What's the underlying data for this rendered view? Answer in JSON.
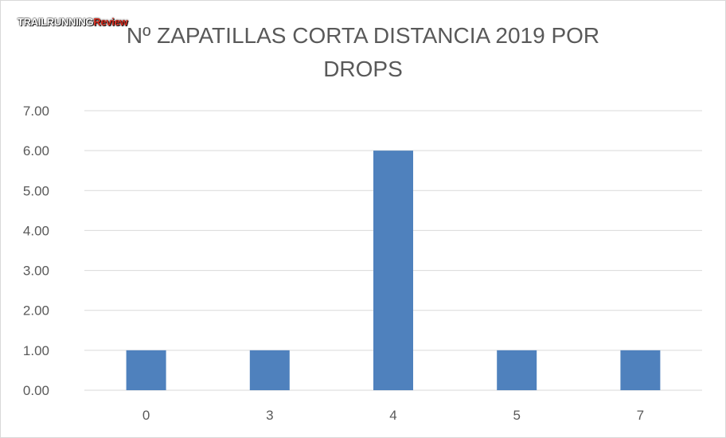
{
  "logo": {
    "part1": "TRAILRUNNING",
    "part2": "Review"
  },
  "chart_data": {
    "type": "bar",
    "title": "Nº ZAPATILLAS CORTA DISTANCIA 2019 POR DROPS",
    "categories": [
      "0",
      "3",
      "4",
      "5",
      "7"
    ],
    "values": [
      1,
      1,
      6,
      1,
      1
    ],
    "ylim": [
      0,
      7
    ],
    "yticks": [
      "0.00",
      "1.00",
      "2.00",
      "3.00",
      "4.00",
      "5.00",
      "6.00",
      "7.00"
    ],
    "grid": true,
    "bar_color": "#4f81bd",
    "grid_color": "#d9d9d9",
    "text_color": "#595959"
  }
}
